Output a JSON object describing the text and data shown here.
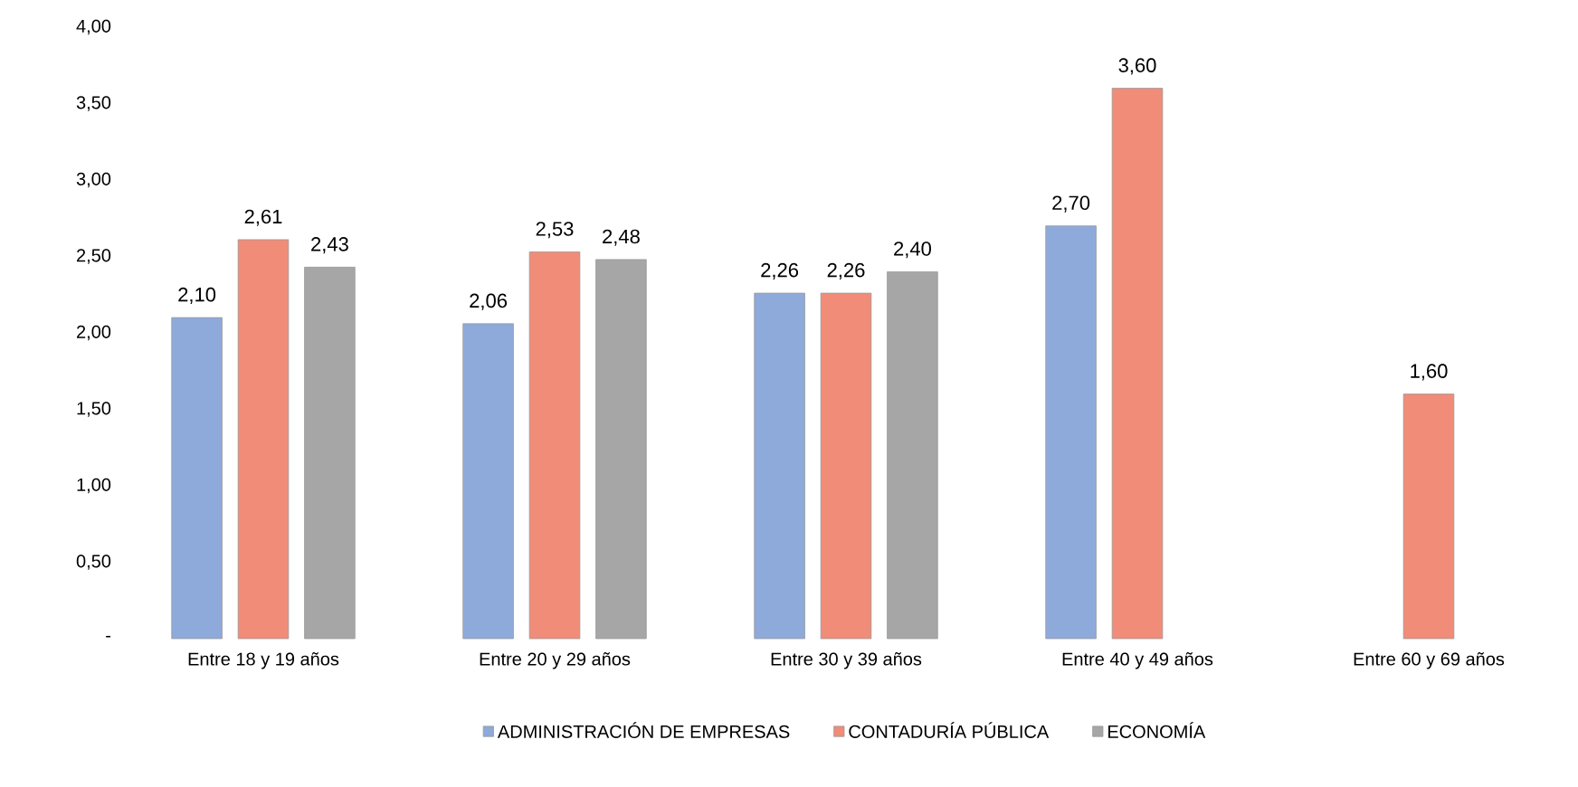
{
  "chart_data": {
    "type": "bar",
    "categories": [
      "Entre 18 y 19 años",
      "Entre 20 y 29 años",
      "Entre 30 y 39 años",
      "Entre 40 y 49 años",
      "Entre 60 y 69 años"
    ],
    "series": [
      {
        "name": "ADMINISTRACIÓN DE EMPRESAS",
        "color": "#8eaadb",
        "values": [
          2.1,
          2.06,
          2.26,
          2.7,
          null
        ],
        "value_labels": [
          "2,10",
          "2,06",
          "2,26",
          "2,70",
          null
        ]
      },
      {
        "name": "CONTADURÍA PÚBLICA",
        "color": "#f08c78",
        "values": [
          2.61,
          2.53,
          2.26,
          3.6,
          1.6
        ],
        "value_labels": [
          "2,61",
          "2,53",
          "2,26",
          "3,60",
          "1,60"
        ]
      },
      {
        "name": "ECONOMÍA",
        "color": "#a6a6a6",
        "values": [
          2.43,
          2.48,
          2.4,
          null,
          null
        ],
        "value_labels": [
          "2,43",
          "2,48",
          "2,40",
          null,
          null
        ]
      }
    ],
    "ylim": [
      0,
      4
    ],
    "yticks": [
      {
        "value": 0,
        "label": "-"
      },
      {
        "value": 0.5,
        "label": "0,50"
      },
      {
        "value": 1,
        "label": "1,00"
      },
      {
        "value": 1.5,
        "label": "1,50"
      },
      {
        "value": 2,
        "label": "2,00"
      },
      {
        "value": 2.5,
        "label": "2,50"
      },
      {
        "value": 3,
        "label": "3,00"
      },
      {
        "value": 3.5,
        "label": "3,50"
      },
      {
        "value": 4,
        "label": "4,00"
      }
    ],
    "grid": false,
    "legend": "bottom"
  }
}
